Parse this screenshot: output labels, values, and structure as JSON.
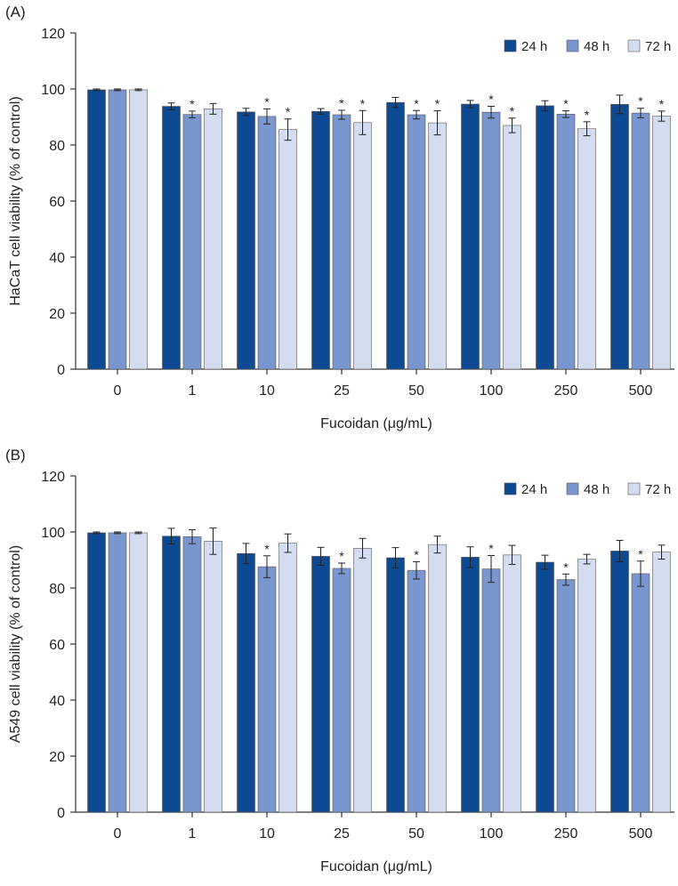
{
  "chart_data": [
    {
      "panel_label": "(A)",
      "type": "bar",
      "categories": [
        "0",
        "1",
        "10",
        "25",
        "50",
        "100",
        "250",
        "500"
      ],
      "series": [
        {
          "name": "24 h",
          "color": "#0d4a94",
          "values": [
            99.7,
            93.8,
            91.8,
            92.0,
            95.2,
            94.6,
            94.0,
            94.5
          ],
          "errors": [
            0.3,
            1.2,
            1.3,
            1.0,
            1.8,
            1.3,
            1.8,
            3.3
          ],
          "significant": [
            false,
            false,
            false,
            false,
            false,
            false,
            false,
            false
          ]
        },
        {
          "name": "48 h",
          "color": "#7a96ce",
          "values": [
            99.7,
            90.9,
            90.2,
            90.8,
            90.8,
            91.7,
            91.0,
            91.4
          ],
          "errors": [
            0.3,
            1.2,
            2.7,
            1.6,
            1.5,
            2.1,
            1.2,
            1.7
          ],
          "significant": [
            false,
            true,
            true,
            true,
            true,
            true,
            true,
            true
          ]
        },
        {
          "name": "72 h",
          "color": "#d4dcef",
          "values": [
            99.7,
            92.9,
            85.5,
            88.0,
            87.9,
            87.0,
            85.8,
            90.3
          ],
          "errors": [
            0.3,
            1.9,
            3.8,
            4.3,
            4.3,
            2.6,
            2.5,
            1.8
          ],
          "significant": [
            false,
            false,
            true,
            true,
            true,
            true,
            true,
            true
          ]
        }
      ],
      "xlabel": "Fucoidan (μg/mL)",
      "ylabel": "HaCaT cell viability (% of control)",
      "ylim": [
        0,
        120
      ],
      "yticks": [
        "0",
        "20",
        "40",
        "60",
        "80",
        "100",
        "120"
      ],
      "significance_marker": "*",
      "legend_position": "top-right",
      "grid": false
    },
    {
      "panel_label": "(B)",
      "type": "bar",
      "categories": [
        "0",
        "1",
        "10",
        "25",
        "50",
        "100",
        "250",
        "500"
      ],
      "series": [
        {
          "name": "24 h",
          "color": "#0d4a94",
          "values": [
            99.7,
            98.5,
            92.3,
            91.3,
            90.8,
            91.0,
            89.2,
            93.2
          ],
          "errors": [
            0.3,
            2.8,
            3.6,
            3.2,
            3.6,
            3.7,
            2.5,
            3.8
          ],
          "significant": [
            false,
            false,
            false,
            false,
            false,
            false,
            false,
            false
          ]
        },
        {
          "name": "48 h",
          "color": "#7a96ce",
          "values": [
            99.7,
            98.3,
            87.6,
            87.0,
            86.3,
            86.8,
            83.0,
            85.1
          ],
          "errors": [
            0.3,
            2.5,
            3.9,
            1.9,
            3.1,
            4.8,
            2.0,
            4.5
          ],
          "significant": [
            false,
            false,
            true,
            true,
            true,
            true,
            true,
            true
          ]
        },
        {
          "name": "72 h",
          "color": "#d4dcef",
          "values": [
            99.7,
            96.7,
            96.0,
            94.2,
            95.5,
            91.8,
            90.3,
            92.8
          ],
          "errors": [
            0.3,
            4.7,
            3.3,
            3.5,
            3.0,
            3.4,
            1.7,
            2.5
          ],
          "significant": [
            false,
            false,
            false,
            false,
            false,
            false,
            false,
            false
          ]
        }
      ],
      "xlabel": "Fucoidan (μg/mL)",
      "ylabel": "A549 cell viability (% of control)",
      "ylim": [
        0,
        120
      ],
      "yticks": [
        "0",
        "20",
        "40",
        "60",
        "80",
        "100",
        "120"
      ],
      "significance_marker": "*",
      "legend_position": "top-right",
      "grid": false
    }
  ]
}
